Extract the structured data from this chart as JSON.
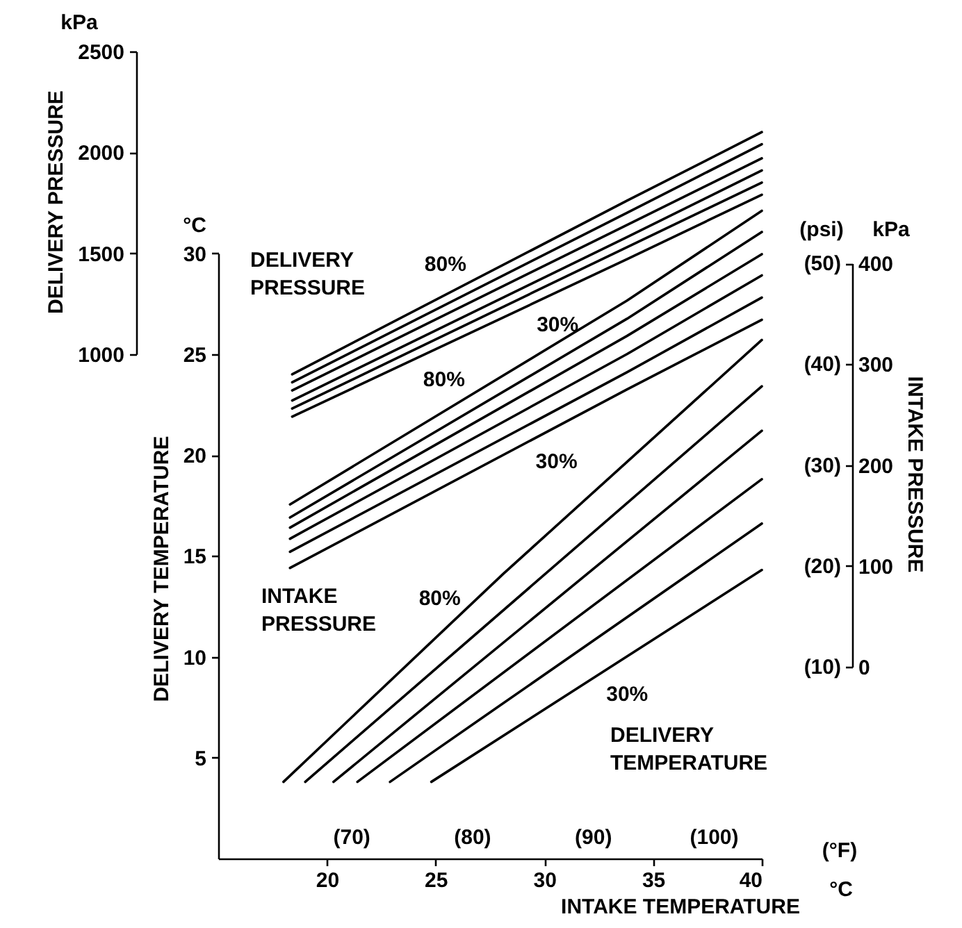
{
  "chart_data": {
    "type": "line",
    "xlabel": "INTAKE TEMPERATURE",
    "ylabel": "DELIVERY TEMPERATURE",
    "y2label": "INTAKE PRESSURE",
    "y3label": "DELIVERY PRESSURE",
    "xlim": [
      15,
      40
    ],
    "xticks": [
      20,
      25,
      30,
      35,
      40
    ],
    "x2lim": [
      59,
      104
    ],
    "x2ticks": [
      {
        "value": 70,
        "label": "(70)"
      },
      {
        "value": 80,
        "label": "(80)"
      },
      {
        "value": 90,
        "label": "(90)"
      },
      {
        "value": 100,
        "label": "(100)"
      }
    ],
    "ylim": [
      0,
      40
    ],
    "yticks": [
      5,
      10,
      15,
      20,
      25,
      30
    ],
    "y2lim": [
      -190,
      610
    ],
    "y2ticks": [
      0,
      100,
      200,
      300,
      400
    ],
    "y3lim": [
      -1500,
      2500
    ],
    "y3ticks": [
      1000,
      1500,
      2000,
      2500
    ],
    "annotations": [
      "DELIVERY PRESSURE",
      "INTAKE PRESSURE",
      "DELIVERY TEMPERATURE",
      "kPa",
      "°C",
      "(psi)",
      "kPa",
      "(°F)",
      "°C",
      "(10)",
      "(20)",
      "(30)",
      "(40)",
      "(50)"
    ],
    "series": [
      {
        "name": "80%",
        "color": "#000000",
        "x": [
          18.0,
          28.1,
          40
        ],
        "values": [
          3.8,
          14.1,
          25.7
        ]
      },
      {
        "color": "#000000",
        "x": [
          19.0,
          40
        ],
        "values": [
          3.8,
          23.4
        ]
      },
      {
        "color": "#000000",
        "x": [
          20.3,
          40
        ],
        "values": [
          3.8,
          21.2
        ]
      },
      {
        "color": "#000000",
        "x": [
          21.4,
          40
        ],
        "values": [
          3.8,
          18.8
        ]
      },
      {
        "color": "#000000",
        "x": [
          22.9,
          40
        ],
        "values": [
          3.8,
          16.6
        ]
      },
      {
        "name": "30%",
        "color": "#000000",
        "x": [
          24.8,
          40
        ],
        "values": [
          3.8,
          14.3
        ]
      },
      {
        "name": "80%",
        "color": "#000000",
        "axis": "y2",
        "x": [
          18.3,
          33.8,
          40
        ],
        "values": [
          161,
          363,
          452
        ]
      },
      {
        "color": "#000000",
        "axis": "y2",
        "x": [
          18.3,
          33.8,
          40
        ],
        "values": [
          148,
          345,
          431
        ]
      },
      {
        "color": "#000000",
        "axis": "y2",
        "x": [
          18.3,
          33.8,
          40
        ],
        "values": [
          138,
          328,
          409
        ]
      },
      {
        "color": "#000000",
        "axis": "y2",
        "x": [
          18.3,
          33.8,
          40
        ],
        "values": [
          127,
          310,
          388
        ]
      },
      {
        "color": "#000000",
        "axis": "y2",
        "x": [
          18.3,
          33.8,
          40
        ],
        "values": [
          114,
          292,
          366
        ]
      },
      {
        "name": "30%",
        "color": "#000000",
        "axis": "y2",
        "x": [
          18.3,
          33.8,
          40
        ],
        "values": [
          98,
          275,
          344
        ]
      },
      {
        "name": "80%",
        "color": "#000000",
        "axis": "y3",
        "x": [
          18.4,
          33.8,
          40
        ],
        "values": [
          900,
          1760,
          2100
        ]
      },
      {
        "color": "#000000",
        "axis": "y3",
        "x": [
          18.4,
          33.8,
          40
        ],
        "values": [
          860,
          1700,
          2040
        ]
      },
      {
        "color": "#000000",
        "axis": "y3",
        "x": [
          18.4,
          33.8,
          40
        ],
        "values": [
          820,
          1640,
          1970
        ]
      },
      {
        "color": "#000000",
        "axis": "y3",
        "x": [
          18.4,
          33.8,
          40
        ],
        "values": [
          770,
          1580,
          1910
        ]
      },
      {
        "color": "#000000",
        "axis": "y3",
        "x": [
          18.4,
          33.8,
          40
        ],
        "values": [
          730,
          1530,
          1850
        ]
      },
      {
        "name": "30%",
        "color": "#000000",
        "axis": "y3",
        "x": [
          18.4,
          33.8,
          40
        ],
        "values": [
          690,
          1470,
          1790
        ]
      }
    ]
  }
}
